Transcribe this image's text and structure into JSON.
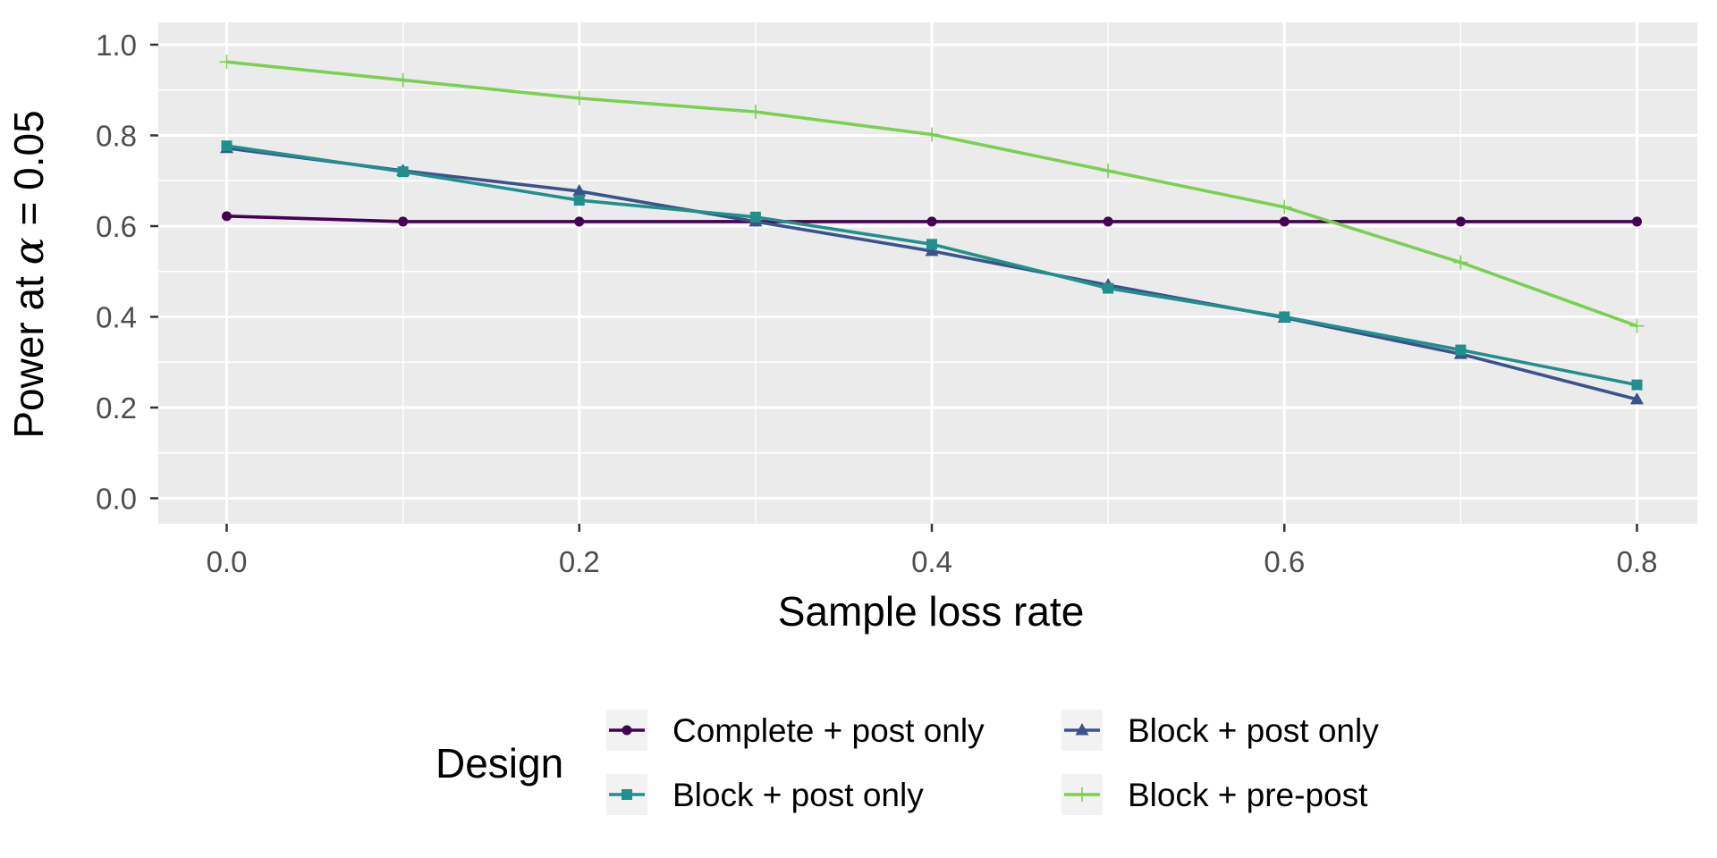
{
  "chart_data": {
    "type": "line",
    "title": "",
    "xlabel": "Sample loss rate",
    "ylabel_prefix": "Power at ",
    "ylabel_symbol": "α",
    "ylabel_suffix": " = 0.05",
    "xlim": [
      -0.1,
      0.85
    ],
    "ylim": [
      -0.05,
      1.05
    ],
    "x_ticks": [
      0.0,
      0.2,
      0.4,
      0.6,
      0.8
    ],
    "x_tick_labels": [
      "0.0",
      "0.2",
      "0.4",
      "0.6",
      "0.8"
    ],
    "x_minor_ticks": [
      0.1,
      0.3,
      0.5,
      0.7
    ],
    "y_ticks": [
      0.0,
      0.2,
      0.4,
      0.6,
      0.8,
      1.0
    ],
    "y_tick_labels": [
      "0.0",
      "0.2",
      "0.4",
      "0.6",
      "0.8",
      "1.0"
    ],
    "y_minor_ticks": [
      0.1,
      0.3,
      0.5,
      0.7,
      0.9
    ],
    "grid": true,
    "legend_title": "Design",
    "legend_position": "bottom",
    "x": [
      0.0,
      0.1,
      0.2,
      0.3,
      0.4,
      0.5,
      0.6,
      0.7,
      0.8
    ],
    "series": [
      {
        "name": "Complete + post only",
        "color": "#440154",
        "marker": "circle",
        "values": [
          0.622,
          0.61,
          0.61,
          0.61,
          0.61,
          0.61,
          0.61,
          0.61,
          0.61
        ]
      },
      {
        "name": "Block + post only",
        "color": "#3B528B",
        "marker": "triangle",
        "values": [
          0.772,
          0.722,
          0.677,
          0.61,
          0.545,
          0.47,
          0.398,
          0.318,
          0.218
        ]
      },
      {
        "name": "Block + post only",
        "color": "#21908C",
        "marker": "square",
        "values": [
          0.777,
          0.72,
          0.657,
          0.62,
          0.56,
          0.463,
          0.4,
          0.327,
          0.25
        ]
      },
      {
        "name": "Block + pre-post",
        "color": "#7AD151",
        "marker": "plus",
        "values": [
          0.962,
          0.922,
          0.882,
          0.852,
          0.802,
          0.722,
          0.642,
          0.52,
          0.38
        ]
      }
    ],
    "legend_order": [
      0,
      1,
      2,
      3
    ]
  }
}
